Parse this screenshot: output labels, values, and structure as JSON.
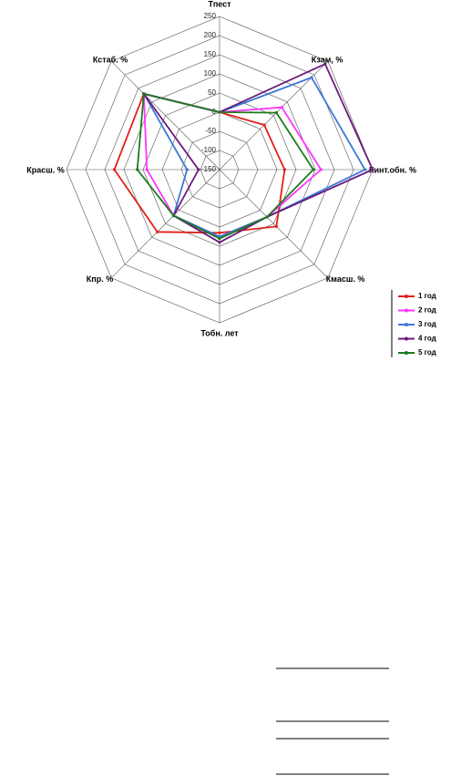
{
  "chart_data": {
    "type": "radar",
    "categories": [
      "Тпест",
      "Кзам, %",
      "Кинт.обн. %",
      "Кмасш. %",
      "Тобн. лет",
      "Кпр. %",
      "Красш. %",
      "Кстаб. %"
    ],
    "ylim": [
      -150,
      250
    ],
    "yticks": [
      -150,
      -100,
      -50,
      0,
      50,
      100,
      150,
      200,
      250
    ],
    "grid": true,
    "legend": "bottom-right",
    "series": [
      {
        "name": "1 год",
        "color": "#e0201c",
        "values": [
          0,
          15,
          20,
          60,
          15,
          80,
          125,
          130
        ]
      },
      {
        "name": "2 год",
        "color": "#ff33ff",
        "values": [
          0,
          80,
          115,
          25,
          25,
          20,
          40,
          130
        ]
      },
      {
        "name": "3 год",
        "color": "#3c78d8",
        "values": [
          0,
          190,
          230,
          25,
          25,
          20,
          -65,
          130
        ]
      },
      {
        "name": "4 год",
        "color": "#6a1a7a",
        "values": [
          0,
          240,
          250,
          25,
          40,
          20,
          -95,
          130
        ]
      },
      {
        "name": "5 год",
        "color": "#1d7a1d",
        "values": [
          0,
          60,
          95,
          25,
          30,
          20,
          65,
          130
        ]
      }
    ]
  }
}
